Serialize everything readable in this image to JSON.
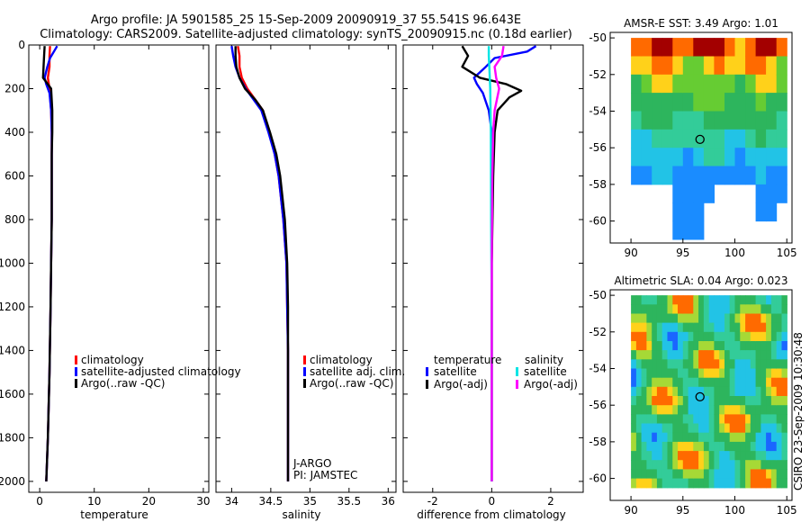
{
  "header": {
    "line1": "Argo profile: JA 5901585_25 15-Sep-2009 20090919_37 55.541S 96.643E",
    "line2": "Climatology: CARS2009. Satellite-adjusted climatology: synTS_20090915.nc (0.18d earlier)"
  },
  "side_text": "CSIRO 23-Sep-2009 10:30:48",
  "annotation": {
    "line1": "J-ARGO",
    "line2": "PI: JAMSTEC"
  },
  "colors": {
    "climatology": "#ff0000",
    "satellite": "#0000ff",
    "argo": "#000000",
    "sal_satellite": "#00e5e5",
    "sal_argo": "#ff00ff"
  },
  "chart_data": [
    {
      "type": "line",
      "xlabel": "temperature",
      "xlim": [
        -2,
        31
      ],
      "ylim": [
        2050,
        0
      ],
      "xticks": [
        0,
        10,
        20,
        30
      ],
      "yticks": [
        0,
        200,
        400,
        600,
        800,
        1000,
        1200,
        1400,
        1600,
        1800,
        2000
      ],
      "legend": {
        "position": "lower-left",
        "entries": [
          "climatology",
          "satellite-adjusted climatology",
          "Argo(..raw -QC)"
        ]
      },
      "series": [
        {
          "name": "climatology",
          "color": "#ff0000",
          "points": [
            [
              1.9,
              5
            ],
            [
              1.8,
              50
            ],
            [
              1.8,
              100
            ],
            [
              1.5,
              150
            ],
            [
              1.8,
              200
            ],
            [
              2.1,
              300
            ],
            [
              2.2,
              400
            ],
            [
              2.2,
              500
            ],
            [
              2.2,
              600
            ],
            [
              2.2,
              800
            ],
            [
              2.1,
              1000
            ],
            [
              2.0,
              1200
            ],
            [
              1.8,
              1500
            ],
            [
              1.5,
              1800
            ],
            [
              1.2,
              2000
            ]
          ]
        },
        {
          "name": "satellite-adjusted climatology",
          "color": "#0000ff",
          "points": [
            [
              3.2,
              5
            ],
            [
              2.6,
              30
            ],
            [
              1.9,
              60
            ],
            [
              1.4,
              100
            ],
            [
              0.9,
              150
            ],
            [
              1.2,
              180
            ],
            [
              1.8,
              220
            ],
            [
              2.1,
              300
            ],
            [
              2.2,
              400
            ],
            [
              2.2,
              500
            ],
            [
              2.2,
              600
            ],
            [
              2.2,
              800
            ],
            [
              2.1,
              1000
            ],
            [
              2.0,
              1200
            ],
            [
              1.8,
              1500
            ],
            [
              1.5,
              1800
            ],
            [
              1.2,
              2000
            ]
          ]
        },
        {
          "name": "Argo(..raw -QC)",
          "color": "#000000",
          "points": [
            [
              0.9,
              5
            ],
            [
              0.8,
              50
            ],
            [
              0.7,
              100
            ],
            [
              0.6,
              150
            ],
            [
              1.5,
              180
            ],
            [
              2.1,
              200
            ],
            [
              2.3,
              300
            ],
            [
              2.3,
              400
            ],
            [
              2.2,
              500
            ],
            [
              2.2,
              600
            ],
            [
              2.2,
              800
            ],
            [
              2.1,
              1000
            ],
            [
              2.0,
              1200
            ],
            [
              1.8,
              1500
            ],
            [
              1.5,
              1800
            ],
            [
              1.2,
              2000
            ]
          ]
        }
      ]
    },
    {
      "type": "line",
      "xlabel": "salinity",
      "xlim": [
        33.8,
        36.1
      ],
      "ylim": [
        2050,
        0
      ],
      "xticks": [
        34,
        34.5,
        35,
        35.5,
        36
      ],
      "yticks": [
        0,
        200,
        400,
        600,
        800,
        1000,
        1200,
        1400,
        1600,
        1800,
        2000
      ],
      "legend": {
        "position": "lower-right",
        "entries": [
          "climatology",
          "satellite adj. clim.",
          "Argo(..raw -QC)"
        ]
      },
      "series": [
        {
          "name": "climatology",
          "color": "#ff0000",
          "points": [
            [
              34.08,
              5
            ],
            [
              34.1,
              50
            ],
            [
              34.1,
              100
            ],
            [
              34.13,
              150
            ],
            [
              34.2,
              200
            ],
            [
              34.3,
              250
            ],
            [
              34.4,
              300
            ],
            [
              34.48,
              400
            ],
            [
              34.55,
              500
            ],
            [
              34.6,
              600
            ],
            [
              34.66,
              800
            ],
            [
              34.7,
              1000
            ],
            [
              34.71,
              1200
            ],
            [
              34.72,
              1400
            ],
            [
              34.72,
              1600
            ],
            [
              34.72,
              1800
            ],
            [
              34.72,
              2000
            ]
          ]
        },
        {
          "name": "satellite adj. clim.",
          "color": "#0000ff",
          "points": [
            [
              34.0,
              5
            ],
            [
              34.02,
              50
            ],
            [
              34.05,
              100
            ],
            [
              34.1,
              150
            ],
            [
              34.18,
              200
            ],
            [
              34.28,
              250
            ],
            [
              34.38,
              300
            ],
            [
              34.47,
              400
            ],
            [
              34.55,
              500
            ],
            [
              34.6,
              600
            ],
            [
              34.66,
              800
            ],
            [
              34.7,
              1000
            ],
            [
              34.71,
              1200
            ],
            [
              34.72,
              1400
            ],
            [
              34.72,
              1600
            ],
            [
              34.72,
              1800
            ],
            [
              34.72,
              2000
            ]
          ]
        },
        {
          "name": "Argo(..raw -QC)",
          "color": "#000000",
          "points": [
            [
              34.05,
              5
            ],
            [
              34.05,
              50
            ],
            [
              34.06,
              100
            ],
            [
              34.1,
              150
            ],
            [
              34.17,
              200
            ],
            [
              34.3,
              250
            ],
            [
              34.4,
              300
            ],
            [
              34.49,
              400
            ],
            [
              34.57,
              500
            ],
            [
              34.62,
              600
            ],
            [
              34.68,
              800
            ],
            [
              34.71,
              1000
            ],
            [
              34.72,
              1200
            ],
            [
              34.72,
              1400
            ],
            [
              34.72,
              1600
            ],
            [
              34.72,
              1800
            ],
            [
              34.72,
              2000
            ]
          ]
        }
      ]
    },
    {
      "type": "line",
      "xlabel": "difference from climatology",
      "xlim": [
        -3,
        3.1
      ],
      "ylim": [
        2050,
        0
      ],
      "xticks": [
        -2,
        0,
        2
      ],
      "yticks": [
        0,
        200,
        400,
        600,
        800,
        1000,
        1200,
        1400,
        1600,
        1800,
        2000
      ],
      "legend": {
        "position": "lower-center",
        "group1": "temperature",
        "group2": "salinity",
        "entries": [
          "satellite",
          "Argo(-adj)",
          "satellite",
          "Argo(-adj)"
        ]
      },
      "series": [
        {
          "name": "temperature satellite",
          "color": "#0000ff",
          "points": [
            [
              1.5,
              5
            ],
            [
              1.2,
              30
            ],
            [
              0.1,
              60
            ],
            [
              -0.2,
              100
            ],
            [
              -0.6,
              150
            ],
            [
              -0.5,
              180
            ],
            [
              -0.3,
              220
            ],
            [
              -0.1,
              300
            ],
            [
              0,
              400
            ],
            [
              0,
              600
            ],
            [
              0,
              1000
            ],
            [
              0,
              1500
            ],
            [
              0,
              2000
            ]
          ]
        },
        {
          "name": "temperature Argo(-adj)",
          "color": "#000000",
          "points": [
            [
              -1.0,
              5
            ],
            [
              -0.8,
              50
            ],
            [
              -1.0,
              100
            ],
            [
              -0.4,
              150
            ],
            [
              0.5,
              180
            ],
            [
              1.0,
              210
            ],
            [
              0.6,
              240
            ],
            [
              0.2,
              300
            ],
            [
              0.1,
              400
            ],
            [
              0.05,
              600
            ],
            [
              0,
              1000
            ],
            [
              0,
              1500
            ],
            [
              0,
              2000
            ]
          ]
        },
        {
          "name": "salinity satellite",
          "color": "#00e5e5",
          "points": [
            [
              -0.1,
              5
            ],
            [
              -0.1,
              50
            ],
            [
              -0.08,
              100
            ],
            [
              -0.05,
              200
            ],
            [
              -0.03,
              400
            ],
            [
              -0.02,
              800
            ],
            [
              0,
              1200
            ],
            [
              0,
              1600
            ],
            [
              0,
              2000
            ]
          ]
        },
        {
          "name": "salinity Argo(-adj)",
          "color": "#ff00ff",
          "points": [
            [
              0.4,
              5
            ],
            [
              0.35,
              50
            ],
            [
              0.1,
              100
            ],
            [
              0.15,
              150
            ],
            [
              0.25,
              200
            ],
            [
              0.1,
              300
            ],
            [
              0.05,
              400
            ],
            [
              0.02,
              600
            ],
            [
              0,
              1000
            ],
            [
              0,
              1400
            ],
            [
              0,
              2000
            ]
          ]
        }
      ]
    },
    {
      "type": "heatmap",
      "title": "AMSR-E SST: 3.49 Argo: 1.01",
      "xlim": [
        88,
        105.5
      ],
      "ylim": [
        -61.2,
        -49.7
      ],
      "xticks": [
        90,
        95,
        100,
        105
      ],
      "yticks": [
        -50,
        -52,
        -54,
        -56,
        -58,
        -60
      ],
      "marker": {
        "lon": 96.643,
        "lat": -55.541
      }
    },
    {
      "type": "heatmap",
      "title": "Altimetric SLA: 0.04 Argo: 0.023",
      "xlim": [
        88,
        105.5
      ],
      "ylim": [
        -61.2,
        -49.7
      ],
      "xticks": [
        90,
        95,
        100,
        105
      ],
      "yticks": [
        -50,
        -52,
        -54,
        -56,
        -58,
        -60
      ],
      "marker": {
        "lon": 96.643,
        "lat": -55.541
      }
    }
  ]
}
